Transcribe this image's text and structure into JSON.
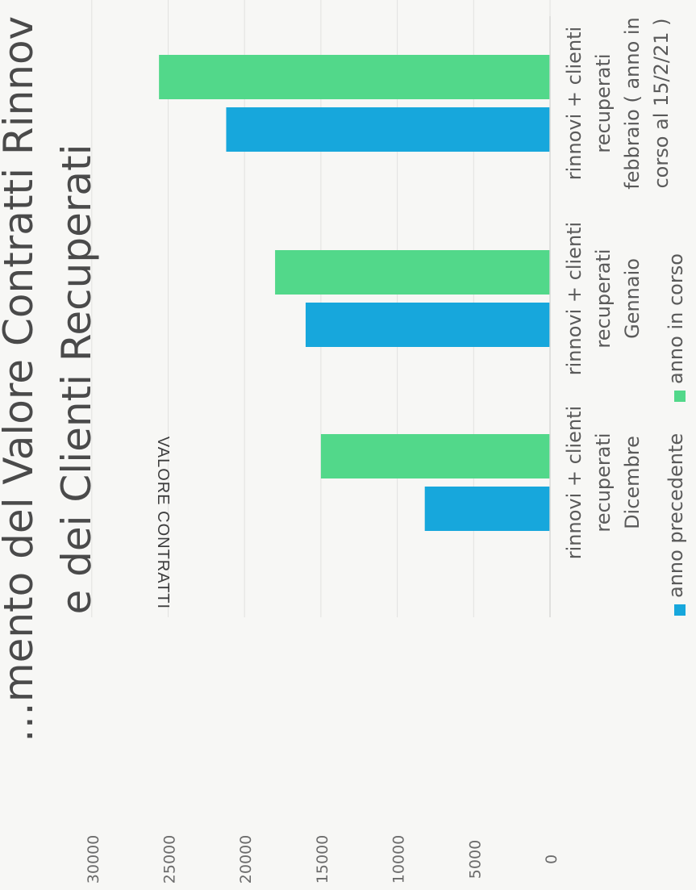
{
  "chart_data": {
    "type": "bar",
    "title_line1": "…mento del Valore Contratti Rinnov",
    "title_line2": "e dei Clienti Recuperati",
    "ylabel": "VALORE CONTRATTI",
    "ylim": [
      0,
      30000
    ],
    "yticks": [
      0,
      5000,
      10000,
      15000,
      20000,
      25000,
      30000
    ],
    "categories": [
      [
        "rinnovi + clienti",
        "recuperati",
        "Dicembre"
      ],
      [
        "rinnovi + clienti",
        "recuperati",
        "Gennaio"
      ],
      [
        "rinnovi + clienti",
        "recuperati",
        "febbraio ( anno in",
        "corso al 15/2/21 )"
      ]
    ],
    "series": [
      {
        "name": "anno precedente",
        "color": "#17a7dc",
        "values": [
          8200,
          16000,
          21200
        ]
      },
      {
        "name": "anno in corso",
        "color": "#52d88a",
        "values": [
          15000,
          18000,
          25600
        ]
      }
    ],
    "grid": true,
    "legend": "bottom"
  }
}
